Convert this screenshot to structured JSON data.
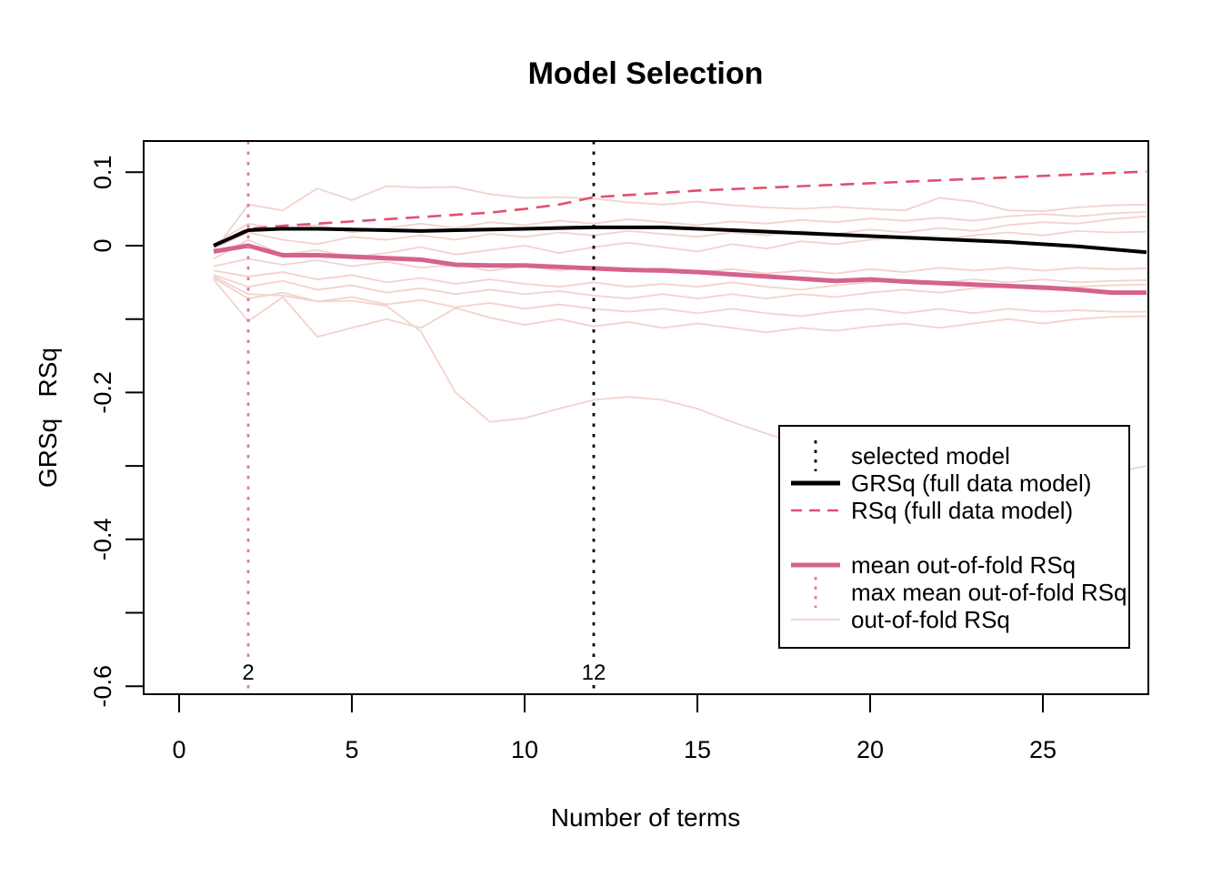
{
  "chart_data": {
    "type": "line",
    "title": "Model Selection",
    "xlabel": "Number of terms",
    "ylabel": "GRSq   RSq",
    "xlim": [
      -1,
      28.2
    ],
    "ylim": [
      -0.61,
      0.14
    ],
    "grid": false,
    "x_ticks": [
      0,
      5,
      10,
      15,
      20,
      25
    ],
    "y_ticks": [
      {
        "v": 0.1,
        "label": "0.1"
      },
      {
        "v": 0.0,
        "label": "0"
      },
      {
        "v": -0.1,
        "label": ""
      },
      {
        "v": -0.2,
        "label": "-0.2"
      },
      {
        "v": -0.3,
        "label": ""
      },
      {
        "v": -0.4,
        "label": "-0.4"
      },
      {
        "v": -0.5,
        "label": ""
      },
      {
        "v": -0.6,
        "label": "-0.6"
      }
    ],
    "x": [
      1,
      2,
      3,
      4,
      5,
      6,
      7,
      8,
      9,
      10,
      11,
      12,
      13,
      14,
      15,
      16,
      17,
      18,
      19,
      20,
      21,
      22,
      23,
      24,
      25,
      26,
      27,
      28
    ],
    "series": [
      {
        "name": "GRSq (full data model)",
        "style": "solid-thick",
        "color": "#000000",
        "values": [
          0.0,
          0.021,
          0.023,
          0.023,
          0.022,
          0.021,
          0.02,
          0.021,
          0.022,
          0.023,
          0.024,
          0.025,
          0.025,
          0.025,
          0.023,
          0.021,
          0.019,
          0.017,
          0.015,
          0.013,
          0.011,
          0.009,
          0.007,
          0.005,
          0.002,
          -0.001,
          -0.005,
          -0.009
        ]
      },
      {
        "name": "RSq (full data model)",
        "style": "dashed",
        "color": "#e0506e",
        "values": [
          0.0,
          0.023,
          0.027,
          0.03,
          0.033,
          0.036,
          0.039,
          0.042,
          0.045,
          0.05,
          0.056,
          0.066,
          0.069,
          0.072,
          0.075,
          0.077,
          0.079,
          0.081,
          0.083,
          0.085,
          0.087,
          0.089,
          0.091,
          0.093,
          0.095,
          0.097,
          0.099,
          0.101
        ]
      },
      {
        "name": "mean out-of-fold RSq",
        "style": "solid-thick",
        "color": "#d5628d",
        "values": [
          -0.008,
          0.0,
          -0.013,
          -0.013,
          -0.015,
          -0.017,
          -0.019,
          -0.026,
          -0.027,
          -0.027,
          -0.029,
          -0.031,
          -0.033,
          -0.034,
          -0.036,
          -0.039,
          -0.042,
          -0.045,
          -0.048,
          -0.046,
          -0.049,
          -0.051,
          -0.053,
          -0.055,
          -0.057,
          -0.06,
          -0.064,
          -0.064
        ]
      }
    ],
    "folds": {
      "name": "out-of-fold RSq",
      "style": "solid-thin",
      "color": "#f2d3cb",
      "lines": [
        [
          -0.008,
          0.056,
          0.048,
          0.078,
          0.062,
          0.081,
          0.079,
          0.08,
          0.07,
          0.065,
          0.066,
          0.064,
          0.059,
          0.056,
          0.06,
          0.055,
          0.052,
          0.05,
          0.053,
          0.05,
          0.048,
          0.065,
          0.06,
          0.048,
          0.047,
          0.052,
          0.055,
          0.056
        ],
        [
          0.002,
          0.03,
          0.022,
          0.028,
          0.018,
          0.024,
          0.03,
          0.024,
          0.032,
          0.028,
          0.034,
          0.03,
          0.036,
          0.032,
          0.028,
          0.033,
          0.03,
          0.035,
          0.032,
          0.037,
          0.034,
          0.038,
          0.034,
          0.04,
          0.043,
          0.04,
          0.044,
          0.046
        ],
        [
          -0.004,
          0.018,
          0.008,
          0.002,
          0.012,
          0.008,
          0.014,
          0.008,
          0.016,
          0.012,
          0.018,
          0.014,
          0.02,
          0.016,
          0.012,
          0.018,
          0.014,
          0.02,
          0.016,
          0.022,
          0.018,
          0.024,
          0.02,
          0.028,
          0.032,
          0.03,
          0.036,
          0.04
        ],
        [
          -0.018,
          0.008,
          -0.012,
          -0.006,
          -0.016,
          -0.01,
          -0.002,
          -0.012,
          -0.006,
          0.0,
          -0.01,
          -0.002,
          0.004,
          -0.002,
          -0.008,
          0.002,
          -0.004,
          0.006,
          0.002,
          0.008,
          0.012,
          0.008,
          0.014,
          0.018,
          0.014,
          0.02,
          0.018,
          0.019
        ],
        [
          -0.028,
          -0.018,
          -0.026,
          -0.02,
          -0.028,
          -0.022,
          -0.03,
          -0.026,
          -0.034,
          -0.028,
          -0.034,
          -0.028,
          -0.034,
          -0.03,
          -0.036,
          -0.032,
          -0.038,
          -0.034,
          -0.038,
          -0.032,
          -0.036,
          -0.03,
          -0.034,
          -0.03,
          -0.034,
          -0.03,
          -0.032,
          -0.031
        ],
        [
          -0.034,
          -0.042,
          -0.036,
          -0.046,
          -0.04,
          -0.05,
          -0.044,
          -0.052,
          -0.046,
          -0.052,
          -0.056,
          -0.05,
          -0.056,
          -0.052,
          -0.056,
          -0.05,
          -0.056,
          -0.06,
          -0.054,
          -0.05,
          -0.046,
          -0.05,
          -0.046,
          -0.05,
          -0.046,
          -0.05,
          -0.048,
          -0.047
        ],
        [
          -0.04,
          -0.056,
          -0.048,
          -0.06,
          -0.054,
          -0.064,
          -0.058,
          -0.066,
          -0.06,
          -0.066,
          -0.062,
          -0.068,
          -0.072,
          -0.066,
          -0.072,
          -0.066,
          -0.072,
          -0.066,
          -0.07,
          -0.064,
          -0.06,
          -0.064,
          -0.058,
          -0.056,
          -0.06,
          -0.056,
          -0.054,
          -0.053
        ],
        [
          -0.044,
          -0.072,
          -0.064,
          -0.076,
          -0.07,
          -0.08,
          -0.074,
          -0.084,
          -0.078,
          -0.086,
          -0.08,
          -0.086,
          -0.09,
          -0.086,
          -0.092,
          -0.086,
          -0.092,
          -0.096,
          -0.09,
          -0.086,
          -0.092,
          -0.086,
          -0.092,
          -0.086,
          -0.09,
          -0.088,
          -0.09,
          -0.09
        ],
        [
          -0.046,
          -0.103,
          -0.07,
          -0.124,
          -0.112,
          -0.1,
          -0.112,
          -0.085,
          -0.098,
          -0.108,
          -0.1,
          -0.11,
          -0.104,
          -0.112,
          -0.106,
          -0.112,
          -0.118,
          -0.112,
          -0.116,
          -0.11,
          -0.106,
          -0.112,
          -0.106,
          -0.1,
          -0.106,
          -0.1,
          -0.097,
          -0.096
        ],
        [
          -0.042,
          -0.066,
          -0.068,
          -0.076,
          -0.075,
          -0.082,
          -0.117,
          -0.2,
          -0.24,
          -0.235,
          -0.222,
          -0.21,
          -0.206,
          -0.21,
          -0.222,
          -0.24,
          -0.256,
          -0.27,
          -0.284,
          -0.298,
          -0.31,
          -0.318,
          -0.325,
          -0.33,
          -0.33,
          -0.326,
          -0.31,
          -0.3
        ]
      ]
    },
    "vlines": [
      {
        "x": 12,
        "label": "12",
        "color": "#000000",
        "name": "selected-model"
      },
      {
        "x": 2,
        "label": "2",
        "color": "#e27ba0",
        "name": "max-mean-out-of-fold-rsq"
      }
    ],
    "legend": {
      "position": "bottom-right",
      "items": [
        {
          "label": "selected model",
          "sample": "vertical-dotted",
          "color": "#000000"
        },
        {
          "label": "GRSq (full data model)",
          "sample": "solid-thick",
          "color": "#000000"
        },
        {
          "label": "RSq (full data model)",
          "sample": "dashed",
          "color": "#e0506e"
        },
        {
          "label": "",
          "sample": "none",
          "color": ""
        },
        {
          "label": "mean out-of-fold RSq",
          "sample": "solid-thick",
          "color": "#d5628d"
        },
        {
          "label": "max mean out-of-fold RSq",
          "sample": "vertical-dotted",
          "color": "#e27ba0"
        },
        {
          "label": "out-of-fold RSq",
          "sample": "solid-thin",
          "color": "#f2d3cb"
        }
      ]
    },
    "colors": {
      "background": "#ffffff",
      "axis": "#000000",
      "grsq": "#000000",
      "rsq": "#e0506e",
      "mean_oof": "#d5628d",
      "fold": "#f2d3cb",
      "vline_selected": "#000000",
      "vline_max_mean": "#e27ba0"
    }
  }
}
